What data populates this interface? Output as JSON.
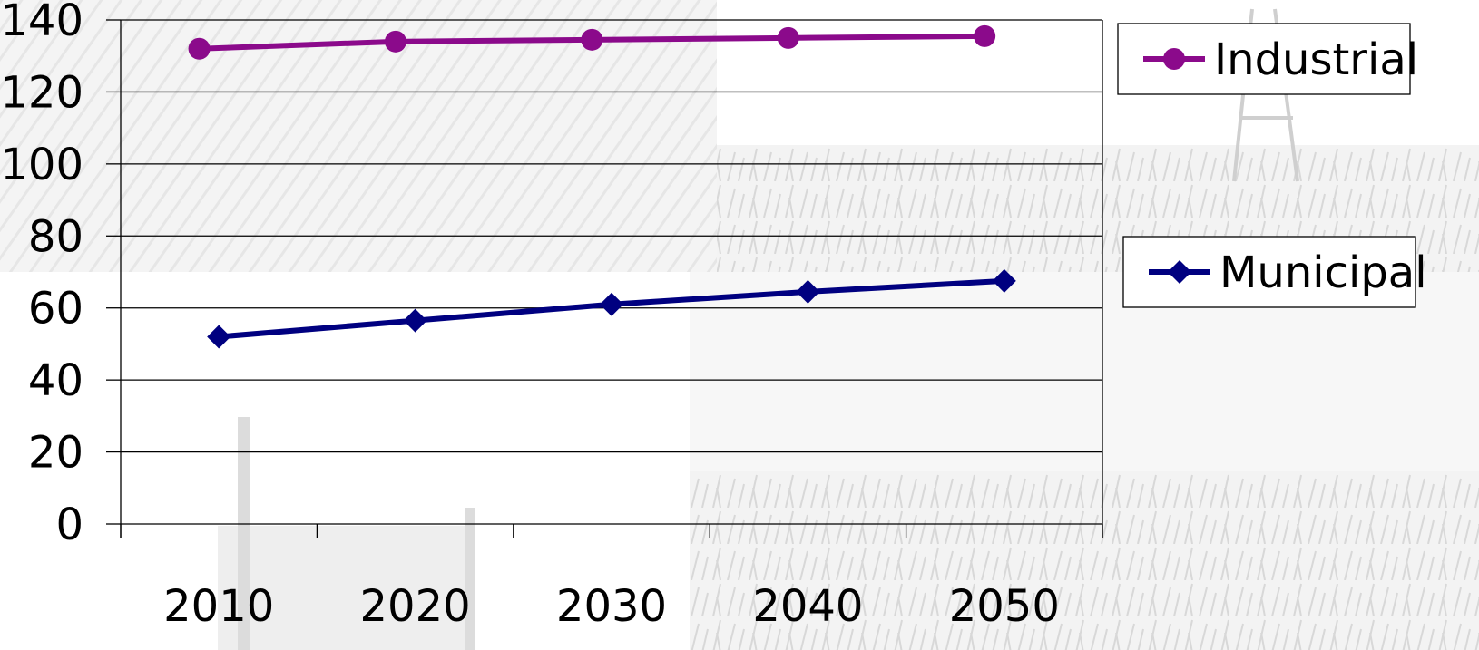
{
  "chart_data": {
    "type": "line",
    "title": "",
    "xlabel": "",
    "ylabel": "",
    "x": [
      "2010",
      "2020",
      "2030",
      "2040",
      "2050"
    ],
    "ylim": [
      0,
      140
    ],
    "y_ticks": [
      "0",
      "20",
      "40",
      "60",
      "80",
      "100",
      "120",
      "140"
    ],
    "grid": "horizontal",
    "legend": "right",
    "series": [
      {
        "name": "Industrial",
        "values": [
          132,
          134,
          134.5,
          135,
          135.5
        ],
        "color": "#8B0A8B",
        "marker": "circle"
      },
      {
        "name": "Municipal",
        "values": [
          52,
          56.5,
          61,
          64.5,
          67.5
        ],
        "color": "#000080",
        "marker": "diamond"
      }
    ],
    "background": "faded grayscale photo collage: houses, field, power line, industrial plant, corn field"
  }
}
